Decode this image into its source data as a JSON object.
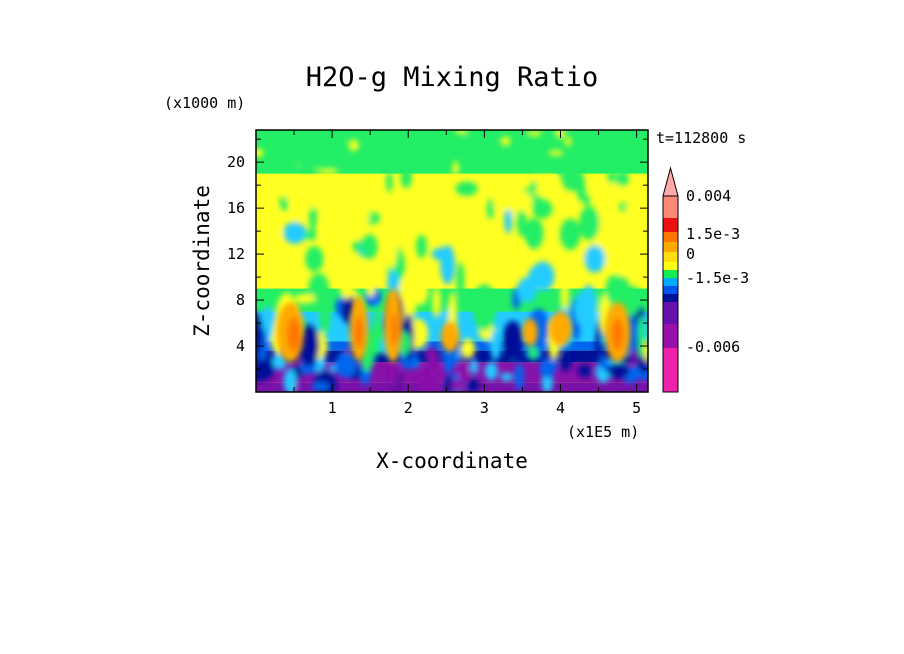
{
  "chart_data": {
    "type": "heatmap",
    "title": "H2O-g Mixing Ratio",
    "xlabel": "X-coordinate",
    "ylabel": "Z-coordinate",
    "x_unit": "(x1E5 m)",
    "y_unit": "(x1000 m)",
    "time_label": "t=112800 s",
    "xlim": [
      0,
      5.15
    ],
    "ylim": [
      0,
      22.8
    ],
    "x_ticks": [
      1,
      2,
      3,
      4,
      5
    ],
    "y_ticks": [
      4,
      8,
      12,
      16,
      20
    ],
    "colorbar": {
      "colors": [
        "#ee22aa",
        "#9911aa",
        "#6611aa",
        "#001199",
        "#0055ee",
        "#00aaff",
        "#11ee55",
        "#ffff11",
        "#ffdd11",
        "#ffaa00",
        "#ff7700",
        "#ee1111",
        "#ff8877",
        "#ffaaaa"
      ],
      "labels": [
        "0.004",
        "1.5e-3",
        "0",
        "-1.5e-3",
        "-0.006"
      ],
      "extend_top": true
    },
    "field": {
      "background": "#ffff22",
      "bands": [
        {
          "zmin": 0,
          "zmax": 0.8,
          "color": "#7711aa"
        },
        {
          "zmin": 0.8,
          "zmax": 2.6,
          "color": "#8811aa"
        },
        {
          "zmin": 2.6,
          "zmax": 3.6,
          "color": "#001199"
        },
        {
          "zmin": 3.6,
          "zmax": 4.4,
          "color": "#0066ee"
        },
        {
          "zmin": 4.4,
          "zmax": 7.0,
          "color": "#22ccff"
        },
        {
          "zmin": 7.0,
          "zmax": 9.0,
          "color": "#22ee66"
        },
        {
          "zmin": 9.0,
          "zmax": 16.5,
          "color": "#ffff22"
        },
        {
          "zmin": 16.5,
          "zmax": 19.0,
          "color": "#ffff22"
        },
        {
          "zmin": 19.0,
          "zmax": 22.8,
          "color": "#22ee66"
        }
      ],
      "cells": [
        {
          "x": 0.45,
          "z": 5.2,
          "rx": 0.18,
          "rz": 2.6,
          "color": "#ffaa00"
        },
        {
          "x": 0.5,
          "z": 5.0,
          "rx": 0.09,
          "rz": 1.5,
          "color": "#ff7700"
        },
        {
          "x": 1.35,
          "z": 5.5,
          "rx": 0.12,
          "rz": 2.8,
          "color": "#ffaa00"
        },
        {
          "x": 1.35,
          "z": 5.2,
          "rx": 0.06,
          "rz": 1.4,
          "color": "#ff7700"
        },
        {
          "x": 1.8,
          "z": 5.8,
          "rx": 0.12,
          "rz": 3.2,
          "color": "#ffaa00"
        },
        {
          "x": 1.82,
          "z": 5.5,
          "rx": 0.05,
          "rz": 1.5,
          "color": "#ff7700"
        },
        {
          "x": 2.55,
          "z": 4.8,
          "rx": 0.12,
          "rz": 1.3,
          "color": "#ffaa00"
        },
        {
          "x": 3.6,
          "z": 5.2,
          "rx": 0.1,
          "rz": 1.2,
          "color": "#ffaa00"
        },
        {
          "x": 4.0,
          "z": 5.5,
          "rx": 0.15,
          "rz": 1.5,
          "color": "#ffaa00"
        },
        {
          "x": 4.75,
          "z": 5.2,
          "rx": 0.17,
          "rz": 2.6,
          "color": "#ffaa00"
        },
        {
          "x": 4.75,
          "z": 5.0,
          "rx": 0.08,
          "rz": 1.4,
          "color": "#ff7700"
        }
      ]
    }
  }
}
